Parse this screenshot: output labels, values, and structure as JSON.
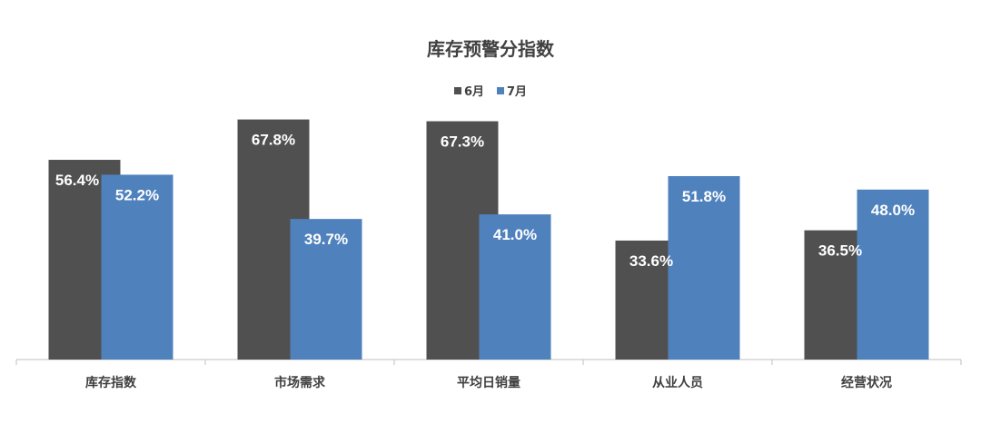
{
  "chart_data": {
    "type": "bar",
    "title": "库存预警分指数",
    "categories": [
      "库存指数",
      "市场需求",
      "平均日销量",
      "从业人员",
      "经营状况"
    ],
    "series": [
      {
        "name": "6月",
        "color": "#505050",
        "values": [
          56.4,
          67.8,
          67.3,
          33.6,
          36.5
        ],
        "labels": [
          "56.4%",
          "67.8%",
          "67.3%",
          "33.6%",
          "36.5%"
        ]
      },
      {
        "name": "7月",
        "color": "#4f81bd",
        "values": [
          52.2,
          39.7,
          41.0,
          51.8,
          48.0
        ],
        "labels": [
          "52.2%",
          "39.7%",
          "41.0%",
          "51.8%",
          "48.0%"
        ]
      }
    ],
    "legend": "top",
    "grid": false,
    "unit": "%"
  }
}
